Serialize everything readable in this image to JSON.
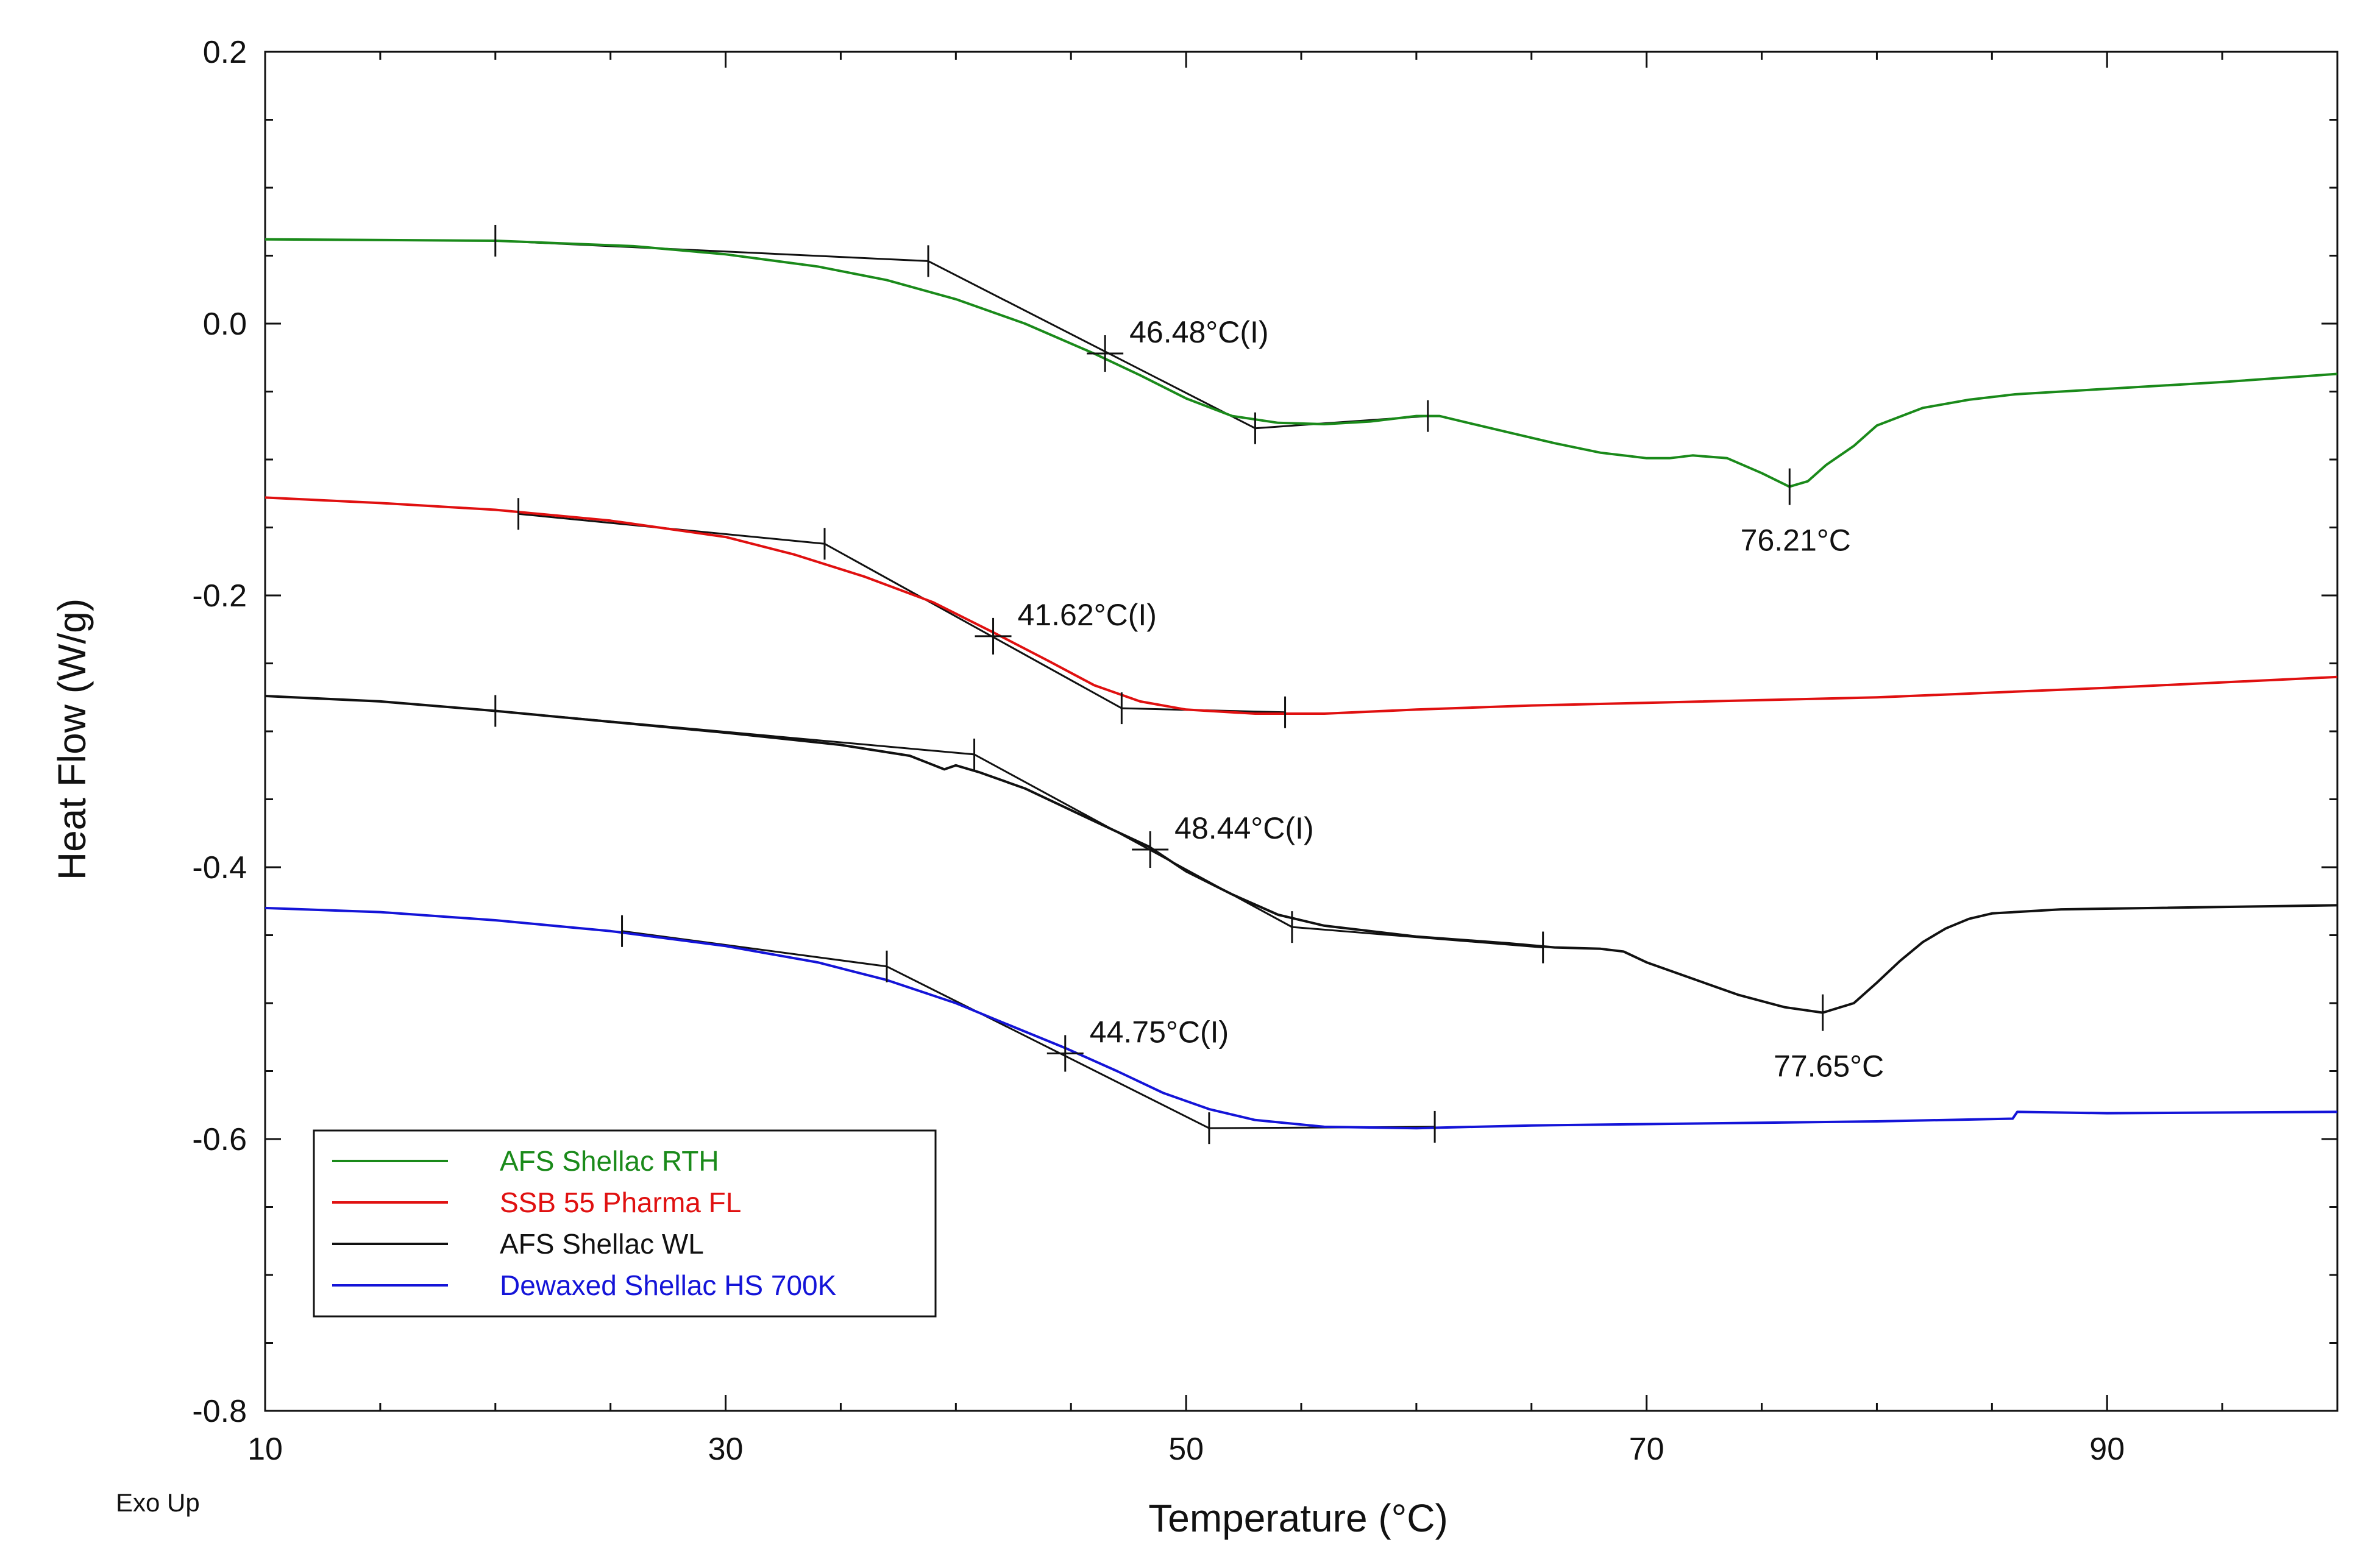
{
  "chart_data": {
    "type": "line",
    "title": "",
    "xlabel": "Temperature (°C)",
    "ylabel": "Heat Flow (W/g)",
    "footnote": "Exo Up",
    "xlim": [
      10,
      100
    ],
    "ylim": [
      -0.8,
      0.2
    ],
    "x_ticks": [
      10,
      30,
      50,
      70,
      90
    ],
    "x_tick_labels": [
      "10",
      "30",
      "50",
      "70",
      "90"
    ],
    "y_ticks": [
      0.2,
      0.0,
      -0.2,
      -0.4,
      -0.6,
      -0.8
    ],
    "y_tick_labels": [
      "0.2",
      "0.0",
      "-0.2",
      "-0.4",
      "-0.6",
      "-0.8"
    ],
    "legend_position": "bottom-left",
    "series": [
      {
        "name": "AFS Shellac RTH",
        "color": "#1a8a1a",
        "points": [
          [
            10,
            0.062
          ],
          [
            20,
            0.061
          ],
          [
            26,
            0.057
          ],
          [
            30,
            0.051
          ],
          [
            34,
            0.042
          ],
          [
            37,
            0.032
          ],
          [
            40,
            0.018
          ],
          [
            43,
            0.0
          ],
          [
            46,
            -0.022
          ],
          [
            48,
            -0.038
          ],
          [
            50,
            -0.055
          ],
          [
            52,
            -0.068
          ],
          [
            54,
            -0.073
          ],
          [
            56,
            -0.074
          ],
          [
            58,
            -0.072
          ],
          [
            60,
            -0.068
          ],
          [
            61,
            -0.068
          ],
          [
            62,
            -0.072
          ],
          [
            64,
            -0.08
          ],
          [
            66,
            -0.088
          ],
          [
            68,
            -0.095
          ],
          [
            70,
            -0.099
          ],
          [
            71,
            -0.099
          ],
          [
            72,
            -0.097
          ],
          [
            73.5,
            -0.099
          ],
          [
            75,
            -0.11
          ],
          [
            76.2,
            -0.12
          ],
          [
            77,
            -0.116
          ],
          [
            77.8,
            -0.104
          ],
          [
            79,
            -0.09
          ],
          [
            80,
            -0.075
          ],
          [
            82,
            -0.062
          ],
          [
            84,
            -0.056
          ],
          [
            86,
            -0.052
          ],
          [
            90,
            -0.048
          ],
          [
            95,
            -0.043
          ],
          [
            100,
            -0.037
          ]
        ],
        "tangents": [
          [
            [
              20,
              0.061
            ],
            [
              38.8,
              0.046
            ]
          ],
          [
            [
              38.8,
              0.046
            ],
            [
              53,
              -0.077
            ]
          ],
          [
            [
              53,
              -0.077
            ],
            [
              60.5,
              -0.068
            ]
          ]
        ],
        "markers": [
          [
            20,
            0.061
          ],
          [
            38.8,
            0.046
          ],
          [
            53,
            -0.077
          ],
          [
            60.5,
            -0.068
          ]
        ],
        "crosses": [
          [
            46.48,
            -0.022
          ],
          [
            76.21,
            -0.12
          ]
        ],
        "annotations": [
          {
            "text": "46.48°C(I)",
            "x": 46.48,
            "y": -0.022,
            "pos": "upper-right"
          },
          {
            "text": "76.21°C",
            "x": 76.21,
            "y": -0.12,
            "pos": "below"
          }
        ]
      },
      {
        "name": "SSB 55 Pharma FL",
        "color": "#e01010",
        "points": [
          [
            10,
            -0.128
          ],
          [
            15,
            -0.132
          ],
          [
            20,
            -0.137
          ],
          [
            25,
            -0.145
          ],
          [
            30,
            -0.157
          ],
          [
            33,
            -0.17
          ],
          [
            36,
            -0.186
          ],
          [
            39,
            -0.205
          ],
          [
            41.6,
            -0.227
          ],
          [
            44,
            -0.248
          ],
          [
            46,
            -0.266
          ],
          [
            48,
            -0.278
          ],
          [
            50,
            -0.284
          ],
          [
            53,
            -0.287
          ],
          [
            56,
            -0.287
          ],
          [
            60,
            -0.284
          ],
          [
            65,
            -0.281
          ],
          [
            70,
            -0.279
          ],
          [
            80,
            -0.275
          ],
          [
            90,
            -0.268
          ],
          [
            100,
            -0.26
          ]
        ],
        "tangents": [
          [
            [
              21,
              -0.14
            ],
            [
              34.3,
              -0.162
            ]
          ],
          [
            [
              34.3,
              -0.162
            ],
            [
              47.2,
              -0.283
            ]
          ],
          [
            [
              47.2,
              -0.283
            ],
            [
              54.3,
              -0.286
            ]
          ]
        ],
        "markers": [
          [
            21,
            -0.14
          ],
          [
            34.3,
            -0.162
          ],
          [
            47.2,
            -0.283
          ],
          [
            54.3,
            -0.286
          ]
        ],
        "crosses": [
          [
            41.62,
            -0.23
          ]
        ],
        "annotations": [
          {
            "text": "41.62°C(I)",
            "x": 41.62,
            "y": -0.23,
            "pos": "upper-right"
          }
        ]
      },
      {
        "name": "AFS Shellac WL",
        "color": "#111111",
        "points": [
          [
            10,
            -0.274
          ],
          [
            15,
            -0.278
          ],
          [
            20,
            -0.285
          ],
          [
            25,
            -0.293
          ],
          [
            30,
            -0.301
          ],
          [
            35,
            -0.31
          ],
          [
            38,
            -0.318
          ],
          [
            39.5,
            -0.328
          ],
          [
            40,
            -0.325
          ],
          [
            41,
            -0.33
          ],
          [
            43,
            -0.342
          ],
          [
            46,
            -0.366
          ],
          [
            48.4,
            -0.385
          ],
          [
            50,
            -0.403
          ],
          [
            52,
            -0.42
          ],
          [
            54,
            -0.435
          ],
          [
            56,
            -0.443
          ],
          [
            60,
            -0.451
          ],
          [
            64,
            -0.456
          ],
          [
            66,
            -0.459
          ],
          [
            68,
            -0.46
          ],
          [
            69,
            -0.462
          ],
          [
            70,
            -0.47
          ],
          [
            72,
            -0.482
          ],
          [
            74,
            -0.494
          ],
          [
            76,
            -0.503
          ],
          [
            77.65,
            -0.507
          ],
          [
            79,
            -0.5
          ],
          [
            80,
            -0.485
          ],
          [
            81,
            -0.469
          ],
          [
            82,
            -0.455
          ],
          [
            83,
            -0.445
          ],
          [
            84,
            -0.438
          ],
          [
            85,
            -0.434
          ],
          [
            88,
            -0.431
          ],
          [
            92,
            -0.43
          ],
          [
            100,
            -0.428
          ]
        ],
        "tangents": [
          [
            [
              20,
              -0.285
            ],
            [
              40.8,
              -0.317
            ]
          ],
          [
            [
              40.8,
              -0.317
            ],
            [
              54.6,
              -0.444
            ]
          ],
          [
            [
              54.6,
              -0.444
            ],
            [
              65.5,
              -0.459
            ]
          ]
        ],
        "markers": [
          [
            20,
            -0.285
          ],
          [
            40.8,
            -0.317
          ],
          [
            54.6,
            -0.444
          ],
          [
            65.5,
            -0.459
          ]
        ],
        "crosses": [
          [
            48.44,
            -0.387
          ],
          [
            77.65,
            -0.507
          ]
        ],
        "annotations": [
          {
            "text": "48.44°C(I)",
            "x": 48.44,
            "y": -0.387,
            "pos": "upper-right"
          },
          {
            "text": "77.65°C",
            "x": 77.65,
            "y": -0.507,
            "pos": "below"
          }
        ]
      },
      {
        "name": "Dewaxed Shellac HS 700K",
        "color": "#1414d8",
        "points": [
          [
            10,
            -0.43
          ],
          [
            15,
            -0.433
          ],
          [
            20,
            -0.439
          ],
          [
            25,
            -0.447
          ],
          [
            30,
            -0.458
          ],
          [
            34,
            -0.47
          ],
          [
            37,
            -0.483
          ],
          [
            40,
            -0.5
          ],
          [
            42,
            -0.514
          ],
          [
            44.75,
            -0.533
          ],
          [
            47,
            -0.55
          ],
          [
            49,
            -0.566
          ],
          [
            51,
            -0.578
          ],
          [
            53,
            -0.586
          ],
          [
            56,
            -0.591
          ],
          [
            60,
            -0.592
          ],
          [
            65,
            -0.59
          ],
          [
            70,
            -0.589
          ],
          [
            80,
            -0.587
          ],
          [
            85.9,
            -0.585
          ],
          [
            86.1,
            -0.58
          ],
          [
            90,
            -0.581
          ],
          [
            100,
            -0.58
          ]
        ],
        "tangents": [
          [
            [
              25.5,
              -0.447
            ],
            [
              37,
              -0.473
            ]
          ],
          [
            [
              37,
              -0.473
            ],
            [
              51,
              -0.592
            ]
          ],
          [
            [
              51,
              -0.592
            ],
            [
              60.8,
              -0.591
            ]
          ]
        ],
        "markers": [
          [
            25.5,
            -0.447
          ],
          [
            37,
            -0.473
          ],
          [
            51,
            -0.592
          ],
          [
            60.8,
            -0.591
          ]
        ],
        "crosses": [
          [
            44.75,
            -0.537
          ]
        ],
        "annotations": [
          {
            "text": "44.75°C(I)",
            "x": 44.75,
            "y": -0.537,
            "pos": "upper-right"
          }
        ]
      }
    ]
  }
}
